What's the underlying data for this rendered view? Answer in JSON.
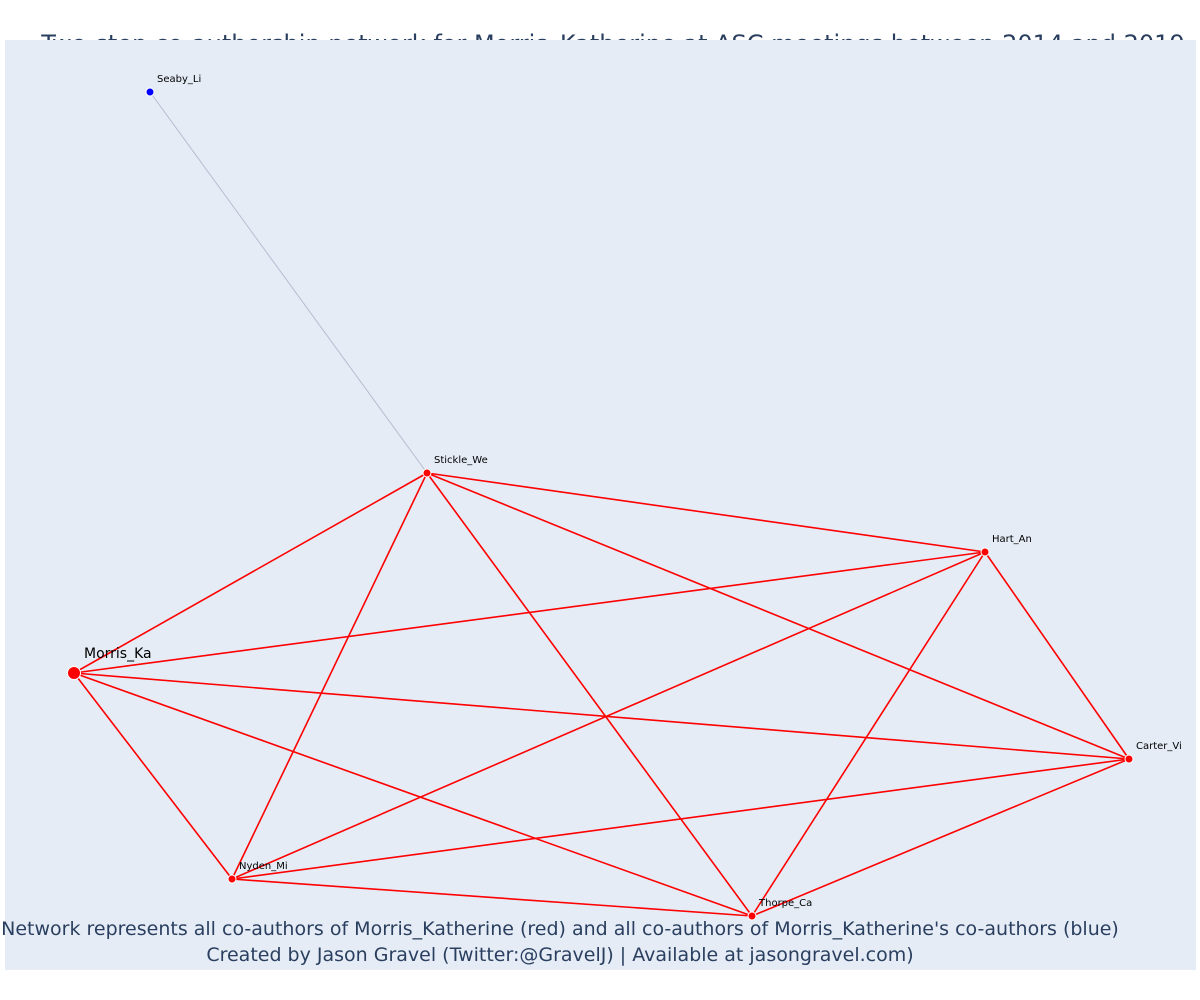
{
  "title": "Two-step co-authorship network for Morris_Katherine at ASC meetings between 2014 and 2019",
  "footer": {
    "line1": "Network represents all co-authors of Morris_Katherine (red) and all co-authors of Morris_Katherine's co-authors (blue)",
    "line2": "Created by Jason Gravel (Twitter:@GravelJ) | Available at jasongravel.com)"
  },
  "colors": {
    "background": "#e5ecf6",
    "coauthor": "#ff0000",
    "second_step": "#0000ff",
    "second_step_edge": "#b8bcd0",
    "text": "#2a3f5f"
  },
  "nodes": [
    {
      "id": "Morris_Ka",
      "group": "focal"
    },
    {
      "id": "Stickle_We",
      "group": "coauthor"
    },
    {
      "id": "Hart_An",
      "group": "coauthor"
    },
    {
      "id": "Carter_Vi",
      "group": "coauthor"
    },
    {
      "id": "Nyden_Mi",
      "group": "coauthor"
    },
    {
      "id": "Thorpe_Ca",
      "group": "coauthor"
    },
    {
      "id": "Seaby_Li",
      "group": "second_step"
    }
  ],
  "edges": [
    [
      "Seaby_Li",
      "Stickle_We"
    ],
    [
      "Stickle_We",
      "Morris_Ka"
    ],
    [
      "Stickle_We",
      "Hart_An"
    ],
    [
      "Stickle_We",
      "Carter_Vi"
    ],
    [
      "Stickle_We",
      "Nyden_Mi"
    ],
    [
      "Stickle_We",
      "Thorpe_Ca"
    ],
    [
      "Hart_An",
      "Morris_Ka"
    ],
    [
      "Hart_An",
      "Carter_Vi"
    ],
    [
      "Hart_An",
      "Nyden_Mi"
    ],
    [
      "Hart_An",
      "Thorpe_Ca"
    ],
    [
      "Morris_Ka",
      "Carter_Vi"
    ],
    [
      "Morris_Ka",
      "Nyden_Mi"
    ],
    [
      "Morris_Ka",
      "Thorpe_Ca"
    ],
    [
      "Nyden_Mi",
      "Carter_Vi"
    ],
    [
      "Nyden_Mi",
      "Thorpe_Ca"
    ],
    [
      "Thorpe_Ca",
      "Carter_Vi"
    ]
  ]
}
